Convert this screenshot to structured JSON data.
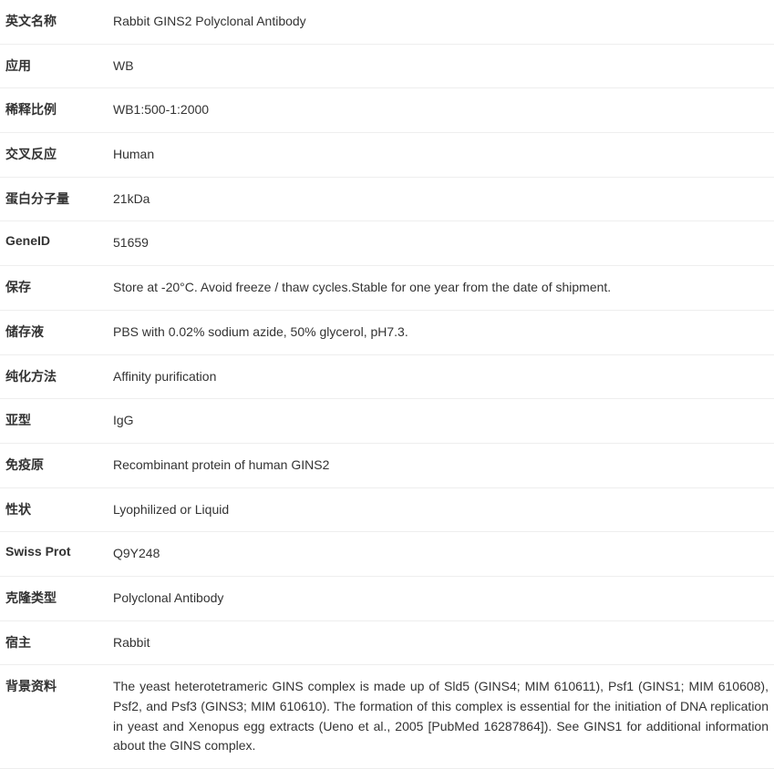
{
  "rows": [
    {
      "label": "英文名称",
      "value": "Rabbit GINS2 Polyclonal Antibody"
    },
    {
      "label": "应用",
      "value": "WB"
    },
    {
      "label": "稀释比例",
      "value": "WB1:500-1:2000"
    },
    {
      "label": "交叉反应",
      "value": "Human"
    },
    {
      "label": "蛋白分子量",
      "value": "21kDa"
    },
    {
      "label": "GeneID",
      "value": "51659"
    },
    {
      "label": "保存",
      "value": "Store at -20°C. Avoid freeze / thaw cycles.Stable for one year from the date of shipment."
    },
    {
      "label": "储存液",
      "value": "PBS with 0.02% sodium azide, 50% glycerol, pH7.3."
    },
    {
      "label": "纯化方法",
      "value": "Affinity purification"
    },
    {
      "label": "亚型",
      "value": "IgG"
    },
    {
      "label": "免疫原",
      "value": "Recombinant protein of human GINS2"
    },
    {
      "label": "性状",
      "value": "Lyophilized or Liquid"
    },
    {
      "label": "Swiss Prot",
      "value": "Q9Y248"
    },
    {
      "label": "克隆类型",
      "value": "Polyclonal Antibody"
    },
    {
      "label": "宿主",
      "value": "Rabbit"
    },
    {
      "label": "背景资料",
      "value": "The yeast heterotetrameric GINS complex is made up of Sld5 (GINS4; MIM 610611), Psf1 (GINS1; MIM 610608), Psf2, and Psf3 (GINS3; MIM 610610). The formation of this complex is essential for the initiation of DNA replication in yeast and Xenopus egg extracts (Ueno et al., 2005 [PubMed 16287864]). See GINS1 for additional information about the GINS complex."
    }
  ]
}
